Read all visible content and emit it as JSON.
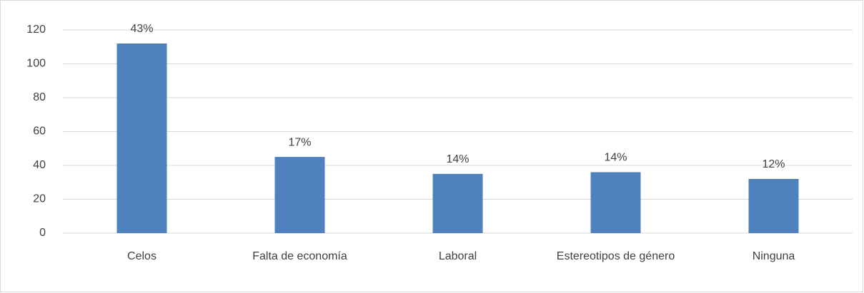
{
  "chart_data": {
    "type": "bar",
    "categories": [
      "Celos",
      "Falta de economía",
      "Laboral",
      "Estereotipos de género",
      "Ninguna"
    ],
    "values": [
      112,
      45,
      35,
      36,
      32
    ],
    "shares": [
      "43%",
      "17%",
      "14%",
      "14%",
      "12%"
    ],
    "color": "#4f81bd",
    "ylim": [
      0,
      120
    ],
    "yticks": [
      0,
      20,
      40,
      60,
      80,
      100,
      120
    ],
    "grid": true
  }
}
